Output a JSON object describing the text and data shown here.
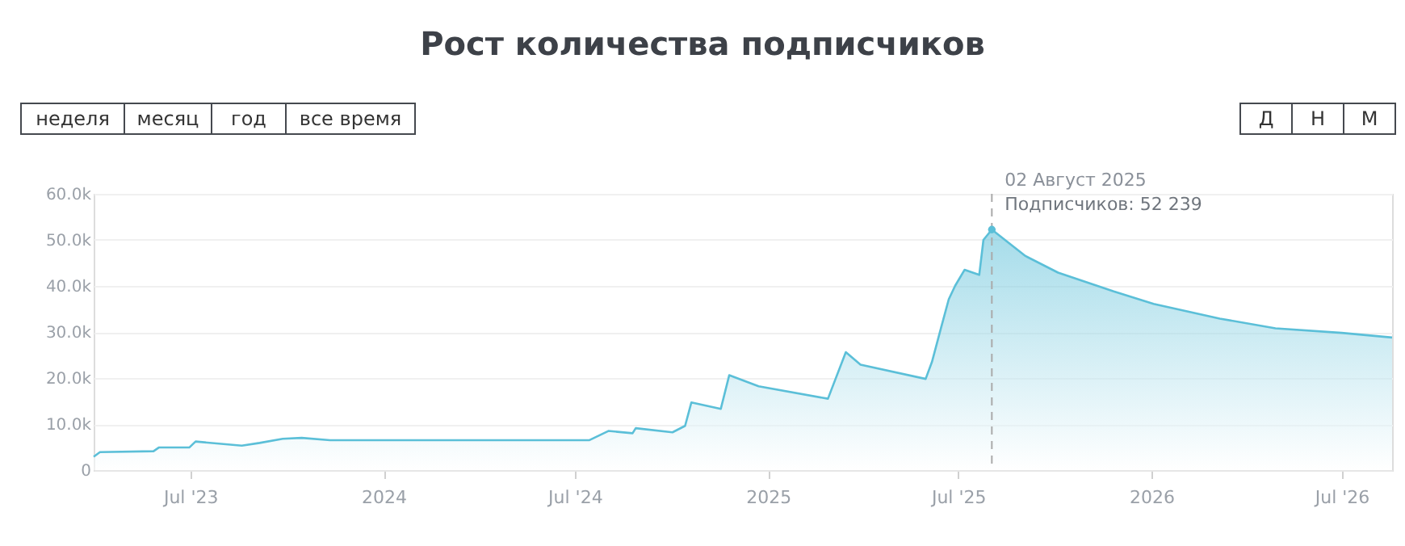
{
  "chart_data": {
    "type": "area",
    "title": "Рост количества подписчиков",
    "x": [
      "2023-03-31",
      "2023-04-06",
      "2023-05-27",
      "2023-06-01",
      "2023-06-30",
      "2023-07-06",
      "2023-08-19",
      "2023-09-05",
      "2023-09-27",
      "2023-10-15",
      "2023-11-11",
      "2024-07-15",
      "2024-08-02",
      "2024-08-25",
      "2024-08-28",
      "2024-10-02",
      "2024-10-14",
      "2024-10-20",
      "2024-11-17",
      "2024-11-25",
      "2024-12-23",
      "2025-02-27",
      "2025-03-02",
      "2025-03-16",
      "2025-03-30",
      "2025-05-31",
      "2025-06-06",
      "2025-06-15",
      "2025-06-22",
      "2025-06-28",
      "2025-07-07",
      "2025-07-21",
      "2025-07-25",
      "2025-08-02",
      "2025-09-03",
      "2025-10-04",
      "2025-11-26",
      "2026-01-03",
      "2026-03-07",
      "2026-04-29",
      "2026-07-01",
      "2026-08-18"
    ],
    "series": [
      {
        "color": "#5bbfd8",
        "values": [
          2900,
          3900,
          4100,
          4900,
          4900,
          6200,
          5300,
          5900,
          6800,
          7000,
          6500,
          6500,
          8500,
          8000,
          9100,
          8200,
          9600,
          14700,
          13300,
          20600,
          18200,
          15500,
          17300,
          25600,
          22900,
          19800,
          23500,
          31200,
          37100,
          40000,
          43500,
          42400,
          50000,
          52239,
          46500,
          42900,
          38800,
          36100,
          32900,
          30800,
          29800,
          28800
        ]
      }
    ],
    "xlim": [
      "2023-03-31",
      "2026-08-18"
    ],
    "xticks": [
      {
        "value": "2023-07-01",
        "label": "Jul '23"
      },
      {
        "value": "2024-01-01",
        "label": "2024"
      },
      {
        "value": "2024-07-01",
        "label": "Jul '24"
      },
      {
        "value": "2025-01-01",
        "label": "2025"
      },
      {
        "value": "2025-07-01",
        "label": "Jul '25"
      },
      {
        "value": "2026-01-01",
        "label": "2026"
      },
      {
        "value": "2026-07-01",
        "label": "Jul '26"
      }
    ],
    "ylim": [
      0,
      60000
    ],
    "yticks": [
      0,
      {
        "value": 10000,
        "label": "10.0k"
      },
      {
        "value": 20000,
        "label": "20.0k"
      },
      {
        "value": 30000,
        "label": "30.0k"
      },
      {
        "value": 40000,
        "label": "40.0k"
      },
      {
        "value": 50000,
        "label": "50.0k"
      },
      {
        "value": 60000,
        "label": "60.0k"
      }
    ],
    "grid": "y",
    "marker": "none",
    "line_style": "solid",
    "ref_lines": [
      {
        "axis": "x",
        "value": "2025-08-02",
        "line_style": "dashed",
        "color": "#aaaaaa"
      }
    ],
    "annotations": [
      {
        "text": "02 Август 2025",
        "x": "2025-08-02",
        "y": 52239
      },
      {
        "text": "Подписчиков: 52 239",
        "x": "2025-08-02",
        "y": 52239
      },
      "неделя",
      "месяц",
      "год",
      "все время",
      "Д",
      "Н",
      "М"
    ]
  }
}
